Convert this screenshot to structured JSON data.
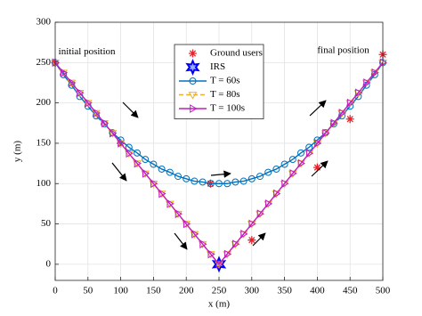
{
  "chart_data": {
    "type": "line",
    "xlabel": "x (m)",
    "ylabel": "y (m)",
    "xlim": [
      0,
      500
    ],
    "ylim": [
      -20,
      300
    ],
    "xticks": [
      0,
      50,
      100,
      150,
      200,
      250,
      300,
      350,
      400,
      450,
      500
    ],
    "yticks": [
      0,
      50,
      100,
      150,
      200,
      250,
      300
    ],
    "grid": true,
    "legend": "north",
    "annotations": [
      {
        "text": "initial position",
        "x": 5,
        "y": 263
      },
      {
        "text": "final position",
        "x": 400,
        "y": 265
      }
    ],
    "series": [
      {
        "name": "Ground users",
        "color": "#e8202a",
        "marker": "asterisk",
        "line": false,
        "x": [
          0,
          100,
          237,
          300,
          400,
          450,
          500
        ],
        "values": [
          250,
          150,
          100,
          30,
          120,
          180,
          260
        ]
      },
      {
        "name": "IRS",
        "color": "#0000ff",
        "marker": "hexagram",
        "line": false,
        "x": [
          250
        ],
        "values": [
          0
        ]
      },
      {
        "name": "T = 60s",
        "color": "#0072bd",
        "marker": "circle",
        "line": true,
        "x": [
          0,
          12.5,
          25,
          37.5,
          50,
          62.5,
          75,
          87.5,
          100,
          112.5,
          125,
          137.5,
          150,
          162.5,
          175,
          187.5,
          200,
          212.5,
          225,
          237.5,
          250,
          262.5,
          275,
          287.5,
          300,
          312.5,
          325,
          337.5,
          350,
          362.5,
          375,
          387.5,
          400,
          412.5,
          425,
          437.5,
          450,
          462.5,
          475,
          487.5,
          500
        ],
        "values": [
          250,
          235,
          222,
          208,
          196,
          184,
          174,
          163,
          154,
          145,
          138,
          130,
          124,
          118,
          114,
          109,
          106,
          103,
          102,
          100,
          100,
          100,
          102,
          103,
          106,
          109,
          114,
          118,
          124,
          130,
          138,
          145,
          154,
          163,
          174,
          184,
          196,
          208,
          222,
          235,
          250
        ]
      },
      {
        "name": "T = 80s",
        "color": "#edb120",
        "marker": "triangle-down",
        "line": true,
        "dash": "5,3",
        "x": [
          0,
          12.5,
          25,
          37.5,
          50,
          62.5,
          75,
          87.5,
          100,
          112.5,
          125,
          137.5,
          150,
          162.5,
          175,
          187.5,
          200,
          212.5,
          225,
          237.5,
          250,
          262.5,
          275,
          287.5,
          300,
          312.5,
          325,
          337.5,
          350,
          362.5,
          375,
          387.5,
          400,
          412.5,
          425,
          437.5,
          450,
          462.5,
          475,
          487.5,
          500
        ],
        "values": [
          250,
          237.5,
          225,
          212.5,
          200,
          187.5,
          175,
          162.5,
          150,
          137.5,
          125,
          112.5,
          100,
          87.5,
          75,
          62.5,
          50,
          37.5,
          25,
          12.5,
          0,
          12.5,
          25,
          37.5,
          50,
          62.5,
          75,
          87.5,
          100,
          112.5,
          125,
          137.5,
          150,
          162.5,
          175,
          187.5,
          200,
          212.5,
          225,
          237.5,
          250
        ]
      },
      {
        "name": "T = 100s",
        "color": "#c21bc2",
        "marker": "triangle-right",
        "line": true,
        "x": [
          0,
          12.5,
          25,
          37.5,
          50,
          62.5,
          75,
          87.5,
          100,
          112.5,
          125,
          137.5,
          150,
          162.5,
          175,
          187.5,
          200,
          212.5,
          225,
          237.5,
          250,
          262.5,
          275,
          287.5,
          300,
          312.5,
          325,
          337.5,
          350,
          362.5,
          375,
          387.5,
          400,
          412.5,
          425,
          437.5,
          450,
          462.5,
          475,
          487.5,
          500
        ],
        "values": [
          250,
          237.5,
          225,
          212.5,
          200,
          187.5,
          175,
          162.5,
          150,
          137.5,
          125,
          112.5,
          100,
          87.5,
          75,
          62.5,
          50,
          37.5,
          25,
          12.5,
          0,
          12.5,
          25,
          37.5,
          50,
          62.5,
          75,
          87.5,
          100,
          112.5,
          125,
          137.5,
          150,
          162.5,
          175,
          187.5,
          200,
          212.5,
          225,
          237.5,
          250
        ]
      }
    ]
  }
}
